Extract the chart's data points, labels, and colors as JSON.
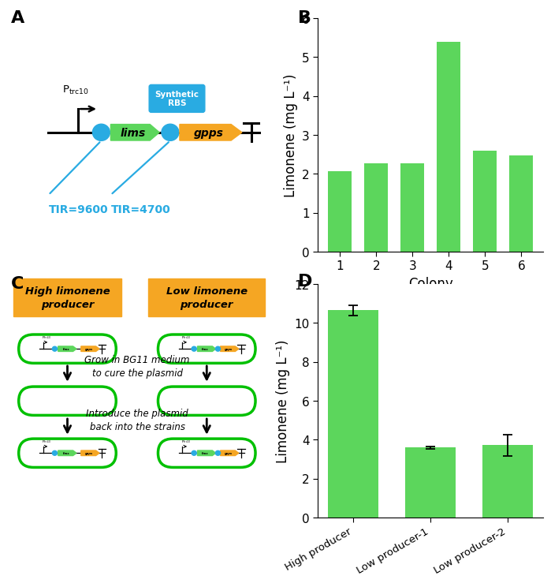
{
  "panel_B": {
    "colonies": [
      "1",
      "2",
      "3",
      "4",
      "5",
      "6"
    ],
    "values": [
      2.07,
      2.27,
      2.27,
      5.4,
      2.6,
      2.47
    ],
    "bar_color": "#5CD65C",
    "xlabel": "Colony",
    "ylabel": "Limonene (mg L⁻¹)",
    "ylim": [
      0,
      6
    ],
    "yticks": [
      0,
      1,
      2,
      3,
      4,
      5,
      6
    ]
  },
  "panel_D": {
    "categories": [
      "High producer",
      "Low producer-1",
      "Low producer-2"
    ],
    "values": [
      10.65,
      3.6,
      3.72
    ],
    "errors": [
      0.25,
      0.07,
      0.55
    ],
    "bar_color": "#5CD65C",
    "ylabel": "Limonene (mg L⁻¹)",
    "ylim": [
      0,
      12
    ],
    "yticks": [
      0,
      2,
      4,
      6,
      8,
      10,
      12
    ]
  },
  "cyan_color": "#29ABE2",
  "green_color": "#5CD65C",
  "orange_color": "#F5A623",
  "cell_green": "#00C000",
  "panel_label_fontsize": 16,
  "axis_label_fontsize": 12,
  "tick_fontsize": 11
}
